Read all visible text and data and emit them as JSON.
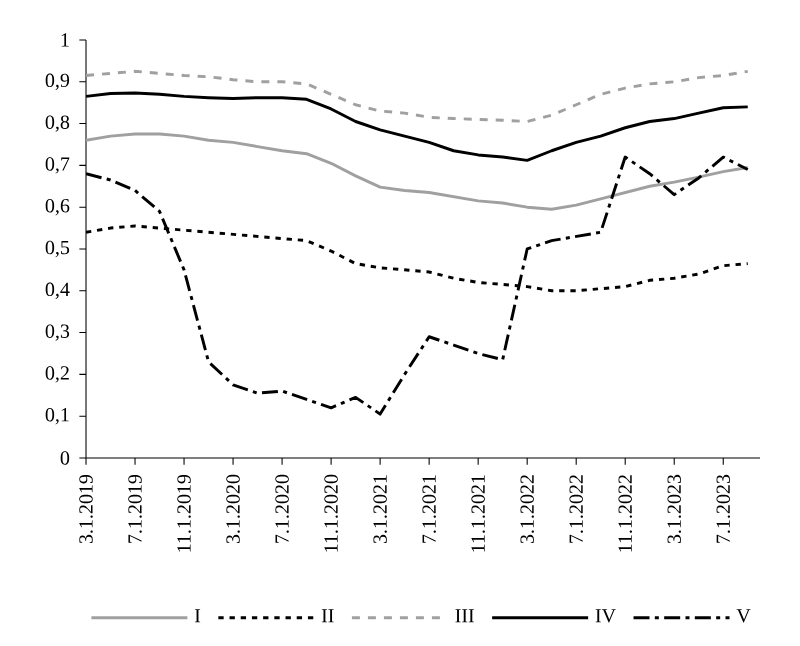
{
  "chart_data": {
    "type": "line",
    "categories": [
      "3.1.2019",
      null,
      "7.1.2019",
      null,
      "11.1.2019",
      null,
      "3.1.2020",
      null,
      "7.1.2020",
      null,
      "11.1.2020",
      null,
      "3.1.2021",
      null,
      "7.1.2021",
      null,
      "11.1.2021",
      null,
      "3.1.2022",
      null,
      "7.1.2022",
      null,
      "11.1.2022",
      null,
      "3.1.2023",
      null,
      "7.1.2023",
      null
    ],
    "series": [
      {
        "name": "I",
        "color": "#a0a0a0",
        "line_style": "solid",
        "values": [
          0.76,
          0.77,
          0.775,
          0.775,
          0.77,
          0.76,
          0.755,
          0.745,
          0.735,
          0.728,
          0.705,
          0.675,
          0.648,
          0.64,
          0.635,
          0.625,
          0.615,
          0.61,
          0.6,
          0.595,
          0.605,
          0.62,
          0.635,
          0.65,
          0.66,
          0.672,
          0.685,
          0.695
        ]
      },
      {
        "name": "II",
        "color": "#000000",
        "line_style": "dotted",
        "values": [
          0.54,
          0.55,
          0.555,
          0.55,
          0.545,
          0.54,
          0.535,
          0.53,
          0.525,
          0.52,
          0.495,
          0.465,
          0.455,
          0.45,
          0.445,
          0.43,
          0.42,
          0.415,
          0.41,
          0.4,
          0.4,
          0.405,
          0.41,
          0.425,
          0.43,
          0.44,
          0.46,
          0.465
        ]
      },
      {
        "name": "III",
        "color": "#a0a0a0",
        "line_style": "dashed",
        "values": [
          0.915,
          0.92,
          0.925,
          0.92,
          0.915,
          0.912,
          0.905,
          0.9,
          0.9,
          0.895,
          0.87,
          0.845,
          0.83,
          0.825,
          0.815,
          0.812,
          0.81,
          0.808,
          0.805,
          0.82,
          0.845,
          0.87,
          0.885,
          0.895,
          0.9,
          0.91,
          0.915,
          0.925
        ]
      },
      {
        "name": "IV",
        "color": "#000000",
        "line_style": "solid",
        "values": [
          0.865,
          0.872,
          0.873,
          0.87,
          0.865,
          0.862,
          0.86,
          0.862,
          0.862,
          0.858,
          0.835,
          0.805,
          0.785,
          0.77,
          0.755,
          0.735,
          0.725,
          0.72,
          0.712,
          0.735,
          0.755,
          0.77,
          0.79,
          0.805,
          0.812,
          0.825,
          0.838,
          0.84
        ]
      },
      {
        "name": "V",
        "color": "#000000",
        "line_style": "dashdot",
        "values": [
          0.68,
          0.665,
          0.64,
          0.59,
          0.45,
          0.23,
          0.175,
          0.155,
          0.16,
          0.14,
          0.12,
          0.145,
          0.105,
          0.2,
          0.29,
          0.27,
          0.25,
          0.235,
          0.5,
          0.52,
          0.53,
          0.54,
          0.72,
          0.68,
          0.63,
          0.67,
          0.72,
          0.69
        ]
      }
    ],
    "ylim": [
      0,
      1
    ],
    "yticks": [
      0,
      {
        "value": 0.1,
        "label": "0,1"
      },
      {
        "value": 0.2,
        "label": "0,2"
      },
      {
        "value": 0.3,
        "label": "0,3"
      },
      {
        "value": 0.4,
        "label": "0,4"
      },
      {
        "value": 0.5,
        "label": "0,5"
      },
      {
        "value": 0.6,
        "label": "0,6"
      },
      {
        "value": 0.7,
        "label": "0,7"
      },
      {
        "value": 0.8,
        "label": "0,8"
      },
      {
        "value": 0.9,
        "label": "0,9"
      },
      1
    ],
    "grid": false,
    "legend": "bottom",
    "marker": "none"
  }
}
